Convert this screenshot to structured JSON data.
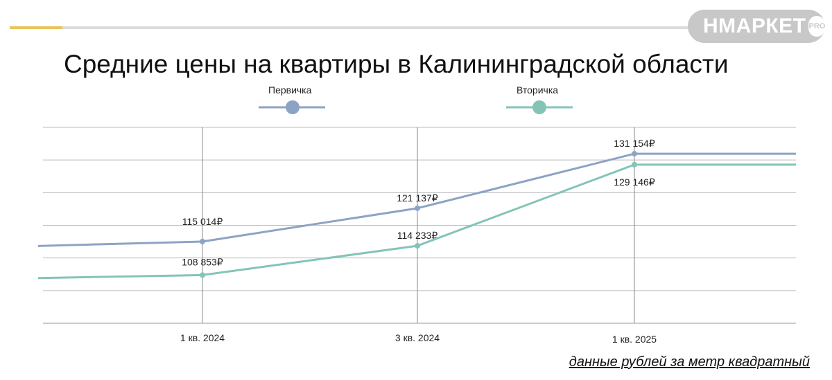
{
  "brand": {
    "name": "НМАРКЕТ",
    "badge": "PRO"
  },
  "colors": {
    "primary_series": "#8ca3c4",
    "secondary_series": "#84c4b8",
    "accent": "#e8c55a",
    "grid": "#bbbbbb"
  },
  "footnote": "данные рублей за метр квадратный",
  "chart_data": {
    "type": "line",
    "title": "Средние цены на квартиры в Калининградской области",
    "xlabel": "",
    "ylabel": "",
    "categories": [
      "1 кв. 2024",
      "3 кв. 2024",
      "1 кв. 2025"
    ],
    "ylim": [
      100000,
      136000
    ],
    "grid": true,
    "legend_position": "top-center",
    "series": [
      {
        "name": "Первичка",
        "values": [
          115014,
          121137,
          131154
        ],
        "labels": [
          "115 014₽",
          "121 137₽",
          "131 154₽"
        ],
        "start_value": 114200,
        "end_value": 131154
      },
      {
        "name": "Вторичка",
        "values": [
          108853,
          114233,
          129146
        ],
        "labels": [
          "108 853₽",
          "114 233₽",
          "129 146₽"
        ],
        "start_value": 108300,
        "end_value": 129146
      }
    ]
  }
}
